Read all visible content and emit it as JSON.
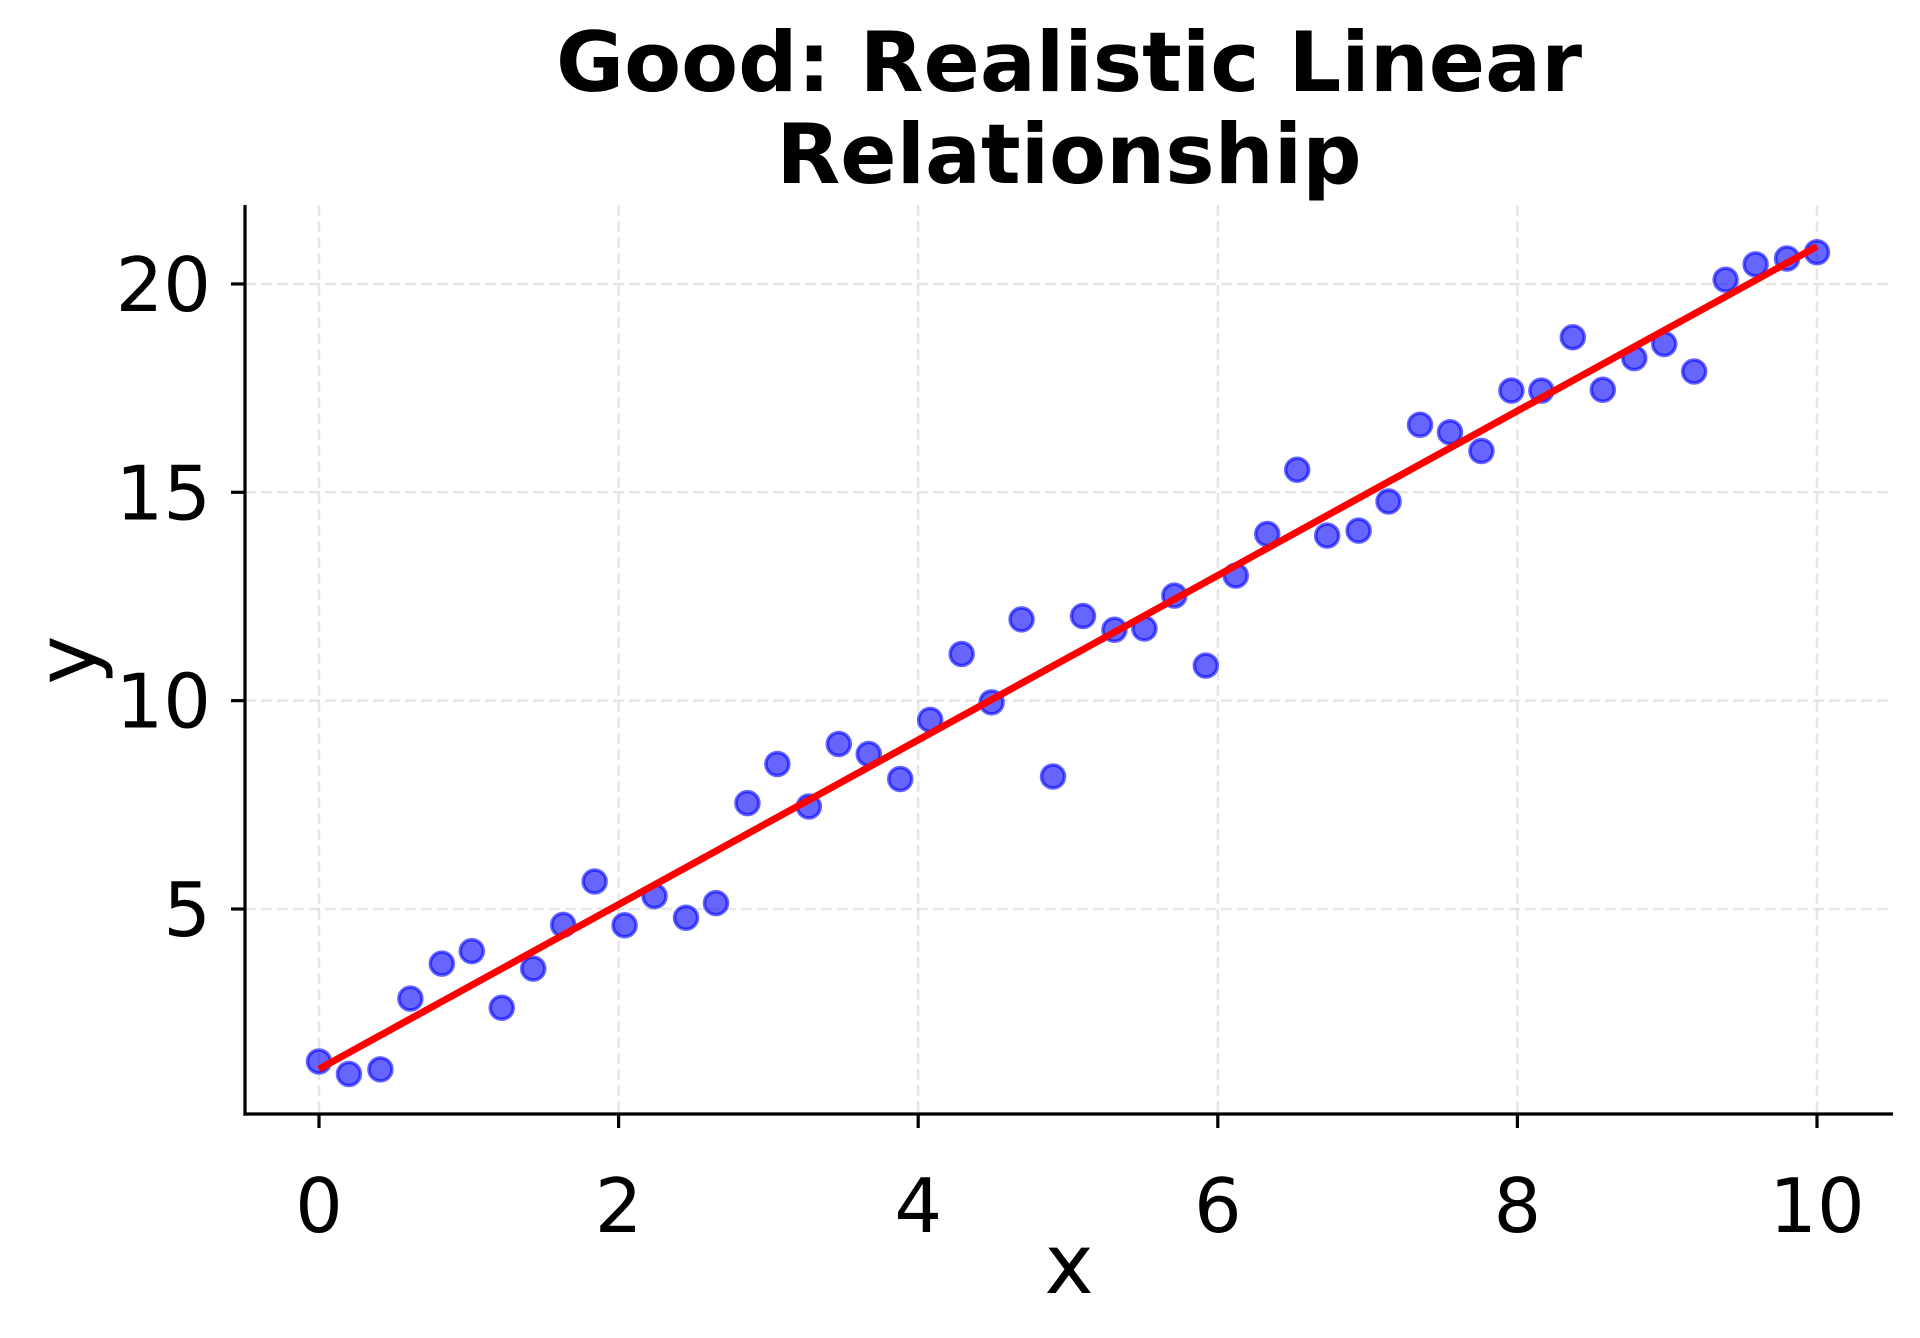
{
  "chart_data": {
    "type": "scatter",
    "title": "Good: Realistic Linear Relationship",
    "title_lines": [
      "Good: Realistic Linear",
      "Relationship"
    ],
    "xlabel": "x",
    "ylabel": "y",
    "xlim": [
      -0.5,
      10.5
    ],
    "ylim": [
      0.08,
      21.9
    ],
    "xticks": [
      0,
      2,
      4,
      6,
      8,
      10
    ],
    "xtick_labels": [
      "0",
      "2",
      "4",
      "6",
      "8",
      "10"
    ],
    "yticks": [
      5,
      10,
      15,
      20
    ],
    "ytick_labels": [
      "5",
      "10",
      "15",
      "20"
    ],
    "grid": true,
    "grid_style": "dashed",
    "legend": null,
    "series": [
      {
        "name": "data",
        "kind": "scatter",
        "color": "#0000ff",
        "alpha": 0.6,
        "x": [
          0.0,
          0.2,
          0.41,
          0.61,
          0.82,
          1.02,
          1.22,
          1.43,
          1.63,
          1.84,
          2.04,
          2.24,
          2.45,
          2.65,
          2.86,
          3.06,
          3.27,
          3.47,
          3.67,
          3.88,
          4.08,
          4.29,
          4.49,
          4.69,
          4.9,
          5.1,
          5.31,
          5.51,
          5.71,
          5.92,
          6.12,
          6.33,
          6.53,
          6.73,
          6.94,
          7.14,
          7.35,
          7.55,
          7.76,
          7.96,
          8.16,
          8.37,
          8.57,
          8.78,
          8.98,
          9.18,
          9.39,
          9.59,
          9.8,
          10.0
        ],
        "y": [
          1.34,
          1.04,
          1.15,
          2.85,
          3.69,
          3.99,
          2.63,
          3.57,
          4.62,
          5.66,
          4.61,
          5.31,
          4.79,
          5.14,
          7.54,
          8.48,
          7.46,
          8.96,
          8.72,
          8.12,
          9.54,
          11.12,
          9.96,
          11.95,
          8.18,
          12.03,
          11.7,
          11.73,
          12.52,
          10.84,
          13.0,
          14.0,
          15.54,
          13.96,
          14.08,
          14.78,
          16.62,
          16.44,
          15.99,
          17.44,
          17.44,
          18.72,
          17.46,
          18.22,
          18.56,
          17.9,
          20.1,
          20.47,
          20.61,
          20.76
        ]
      },
      {
        "name": "fit",
        "kind": "line",
        "color": "#ff0000",
        "x": [
          0,
          10
        ],
        "y": [
          1.16,
          20.9
        ]
      }
    ]
  }
}
